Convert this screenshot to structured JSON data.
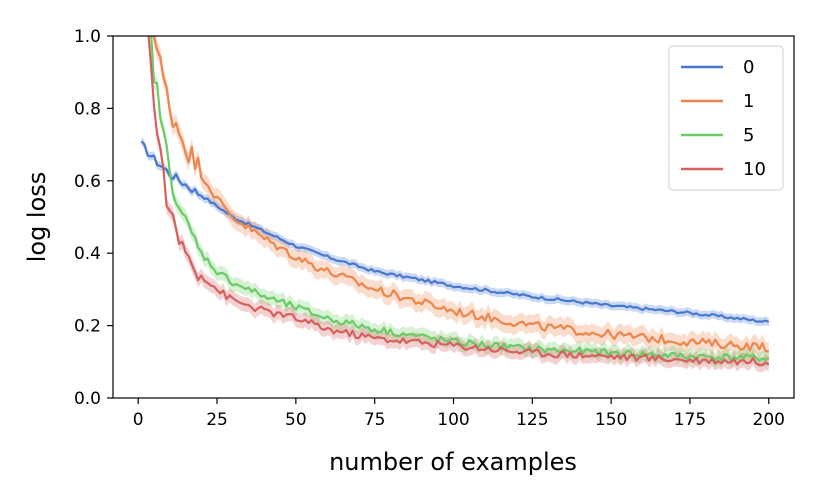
{
  "chart_data": {
    "type": "line",
    "xlabel": "number of examples",
    "ylabel": "log loss",
    "xlim": [
      -8,
      208
    ],
    "ylim": [
      0.0,
      1.0
    ],
    "xticks": [
      0,
      25,
      50,
      75,
      100,
      125,
      150,
      175,
      200
    ],
    "yticks": [
      0.0,
      0.2,
      0.4,
      0.6,
      0.8,
      1.0
    ],
    "xtick_labels": [
      "0",
      "25",
      "50",
      "75",
      "100",
      "125",
      "150",
      "175",
      "200"
    ],
    "ytick_labels": [
      "0.0",
      "0.2",
      "0.4",
      "0.6",
      "0.8",
      "1.0"
    ],
    "grid": false,
    "legend_position": "top-right",
    "series": [
      {
        "name": "0",
        "color": "#4878d0",
        "x": [
          1,
          5,
          10,
          15,
          20,
          25,
          30,
          40,
          50,
          60,
          75,
          100,
          125,
          150,
          175,
          200
        ],
        "y": [
          0.7,
          0.66,
          0.62,
          0.59,
          0.56,
          0.53,
          0.5,
          0.46,
          0.42,
          0.39,
          0.35,
          0.31,
          0.28,
          0.255,
          0.235,
          0.21
        ],
        "band": 0.012
      },
      {
        "name": "1",
        "color": "#ee854a",
        "x": [
          1,
          5,
          10,
          15,
          20,
          25,
          30,
          40,
          50,
          60,
          75,
          100,
          125,
          150,
          175,
          200
        ],
        "y": [
          1.3,
          1.0,
          0.8,
          0.7,
          0.62,
          0.55,
          0.5,
          0.44,
          0.39,
          0.35,
          0.3,
          0.24,
          0.2,
          0.175,
          0.155,
          0.14
        ],
        "band": 0.025
      },
      {
        "name": "5",
        "color": "#6acc64",
        "x": [
          1,
          5,
          10,
          15,
          20,
          25,
          30,
          40,
          50,
          60,
          75,
          100,
          125,
          150,
          175,
          200
        ],
        "y": [
          1.3,
          0.9,
          0.62,
          0.48,
          0.4,
          0.35,
          0.32,
          0.28,
          0.25,
          0.22,
          0.19,
          0.155,
          0.135,
          0.125,
          0.115,
          0.11
        ],
        "band": 0.02
      },
      {
        "name": "10",
        "color": "#d65f5f",
        "x": [
          1,
          5,
          10,
          15,
          20,
          25,
          30,
          40,
          50,
          60,
          75,
          100,
          125,
          150,
          175,
          200
        ],
        "y": [
          1.3,
          0.8,
          0.5,
          0.4,
          0.34,
          0.3,
          0.27,
          0.24,
          0.22,
          0.19,
          0.165,
          0.145,
          0.125,
          0.115,
          0.105,
          0.1
        ],
        "band": 0.02
      }
    ]
  }
}
